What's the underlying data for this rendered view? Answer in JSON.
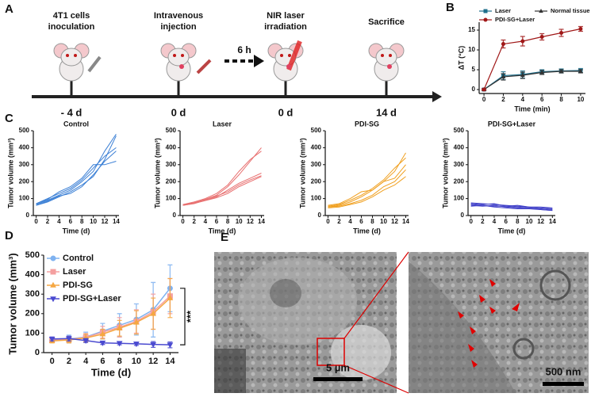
{
  "panels": [
    "A",
    "B",
    "C",
    "D",
    "E"
  ],
  "timeline": {
    "events": [
      {
        "label": [
          "4T1 cells",
          "inoculation"
        ],
        "day": "- 4 d"
      },
      {
        "label": [
          "Intravenous",
          "injection"
        ],
        "day": "0 d"
      },
      {
        "label": [
          "NIR laser",
          "irradiation"
        ],
        "day": "0 d"
      },
      {
        "label": [
          "Sacrifice"
        ],
        "day": "14 d"
      }
    ],
    "interval": "6 h"
  },
  "micrographs": [
    {
      "scale_bar": "5 µm"
    },
    {
      "scale_bar": "500 nm"
    }
  ],
  "chart_data": [
    {
      "type": "line",
      "xlabel": "Time (min)",
      "ylabel": "ΔT (°C)",
      "legend": "top",
      "x": [
        0,
        2,
        4,
        6,
        8,
        10
      ],
      "xlim": [
        -0.5,
        10.5
      ],
      "xticks": [
        0,
        2,
        4,
        6,
        8,
        10
      ],
      "ylim": [
        -1,
        17
      ],
      "yticks": [
        0,
        5,
        10,
        15
      ],
      "series": [
        {
          "name": "Laser",
          "color": "#1f6f8b",
          "marker": "square",
          "values": [
            0,
            3.5,
            3.8,
            4.5,
            4.7,
            4.8
          ],
          "errors": [
            0.2,
            1.0,
            0.9,
            0.5,
            0.5,
            0.5
          ]
        },
        {
          "name": "Normal tissue",
          "color": "#333333",
          "marker": "triangle",
          "values": [
            0,
            3.2,
            3.6,
            4.3,
            4.6,
            4.6
          ],
          "errors": [
            0.2,
            0.8,
            0.8,
            0.5,
            0.4,
            0.4
          ]
        },
        {
          "name": "PDI-SG+Laser",
          "color": "#a01818",
          "marker": "circle",
          "values": [
            0,
            11.5,
            12.2,
            13.3,
            14.3,
            15.3
          ],
          "errors": [
            0.2,
            1.0,
            1.2,
            0.8,
            0.9,
            0.6
          ]
        }
      ]
    },
    {
      "type": "line",
      "title": "Control",
      "xlabel": "Time (d)",
      "ylabel": "Tumor volume (mm³)",
      "x": [
        0,
        2,
        4,
        6,
        8,
        10,
        12,
        14
      ],
      "xlim": [
        -0.5,
        14.5
      ],
      "xticks": [
        0,
        2,
        4,
        6,
        8,
        10,
        12,
        14
      ],
      "ylim": [
        0,
        500
      ],
      "yticks": [
        0,
        100,
        200,
        300,
        400,
        500
      ],
      "series": [
        {
          "color": "#3a7fd5",
          "values": [
            60,
            80,
            110,
            140,
            180,
            230,
            330,
            470
          ]
        },
        {
          "color": "#3a7fd5",
          "values": [
            65,
            90,
            120,
            150,
            200,
            260,
            380,
            480
          ]
        },
        {
          "color": "#3a7fd5",
          "values": [
            70,
            100,
            130,
            160,
            210,
            280,
            350,
            400
          ]
        },
        {
          "color": "#3a7fd5",
          "values": [
            60,
            85,
            115,
            130,
            170,
            240,
            320,
            380
          ]
        },
        {
          "color": "#3a7fd5",
          "values": [
            70,
            95,
            140,
            170,
            220,
            300,
            300,
            320
          ]
        }
      ]
    },
    {
      "type": "line",
      "title": "Laser",
      "xlabel": "Time (d)",
      "ylabel": "Tumor volume (mm³)",
      "x": [
        0,
        2,
        4,
        6,
        8,
        10,
        12,
        14
      ],
      "xlim": [
        -0.5,
        14.5
      ],
      "xticks": [
        0,
        2,
        4,
        6,
        8,
        10,
        12,
        14
      ],
      "ylim": [
        0,
        500
      ],
      "yticks": [
        0,
        100,
        200,
        300,
        400,
        500
      ],
      "series": [
        {
          "color": "#e87070",
          "values": [
            60,
            75,
            95,
            120,
            170,
            240,
            320,
            400
          ]
        },
        {
          "color": "#e87070",
          "values": [
            65,
            80,
            100,
            130,
            180,
            260,
            330,
            380
          ]
        },
        {
          "color": "#e87070",
          "values": [
            60,
            70,
            90,
            110,
            150,
            190,
            220,
            250
          ]
        },
        {
          "color": "#e87070",
          "values": [
            65,
            75,
            95,
            115,
            140,
            180,
            210,
            235
          ]
        },
        {
          "color": "#e87070",
          "values": [
            60,
            72,
            88,
            105,
            130,
            170,
            200,
            230
          ]
        }
      ]
    },
    {
      "type": "line",
      "title": "PDI-SG",
      "xlabel": "Time (d)",
      "ylabel": "Tumor volume (mm³)",
      "x": [
        0,
        2,
        4,
        6,
        8,
        10,
        12,
        14
      ],
      "xlim": [
        -0.5,
        14.5
      ],
      "xticks": [
        0,
        2,
        4,
        6,
        8,
        10,
        12,
        14
      ],
      "ylim": [
        0,
        500
      ],
      "yticks": [
        0,
        100,
        200,
        300,
        400,
        500
      ],
      "series": [
        {
          "color": "#f0a020",
          "values": [
            50,
            60,
            80,
            110,
            150,
            200,
            260,
            370
          ]
        },
        {
          "color": "#f0a020",
          "values": [
            55,
            65,
            90,
            120,
            160,
            210,
            280,
            340
          ]
        },
        {
          "color": "#f0a020",
          "values": [
            60,
            70,
            100,
            140,
            150,
            200,
            220,
            300
          ]
        },
        {
          "color": "#f0a020",
          "values": [
            50,
            55,
            70,
            90,
            120,
            170,
            200,
            270
          ]
        },
        {
          "color": "#f0a020",
          "values": [
            45,
            50,
            65,
            80,
            110,
            150,
            180,
            230
          ]
        }
      ]
    },
    {
      "type": "line",
      "title": "PDI-SG+Laser",
      "xlabel": "Time (d)",
      "ylabel": "Tumor volume (mm³)",
      "x": [
        0,
        2,
        4,
        6,
        8,
        10,
        12,
        14
      ],
      "xlim": [
        -0.5,
        14.5
      ],
      "xticks": [
        0,
        2,
        4,
        6,
        8,
        10,
        12,
        14
      ],
      "ylim": [
        0,
        500
      ],
      "yticks": [
        0,
        100,
        200,
        300,
        400,
        500
      ],
      "series": [
        {
          "color": "#4040c8",
          "values": [
            75,
            70,
            65,
            60,
            55,
            50,
            45,
            40
          ]
        },
        {
          "color": "#4040c8",
          "values": [
            70,
            65,
            70,
            55,
            60,
            50,
            50,
            45
          ]
        },
        {
          "color": "#4040c8",
          "values": [
            60,
            55,
            60,
            50,
            45,
            45,
            40,
            35
          ]
        },
        {
          "color": "#4040c8",
          "values": [
            65,
            60,
            55,
            55,
            50,
            45,
            35,
            30
          ]
        },
        {
          "color": "#4040c8",
          "values": [
            55,
            60,
            50,
            45,
            40,
            40,
            35,
            30
          ]
        }
      ]
    },
    {
      "type": "line",
      "xlabel": "Time (d)",
      "ylabel": "Tumor volume (mm³)",
      "legend": "upper left",
      "annotation": "***",
      "x": [
        0,
        2,
        4,
        6,
        8,
        10,
        12,
        14
      ],
      "xlim": [
        -1,
        15
      ],
      "xticks": [
        0,
        2,
        4,
        6,
        8,
        10,
        12,
        14
      ],
      "ylim": [
        0,
        500
      ],
      "yticks": [
        0,
        100,
        200,
        300,
        400,
        500
      ],
      "series": [
        {
          "name": "Control",
          "color": "#7fb2f0",
          "marker": "circle",
          "values": [
            65,
            70,
            80,
            110,
            140,
            170,
            220,
            330
          ],
          "errors": [
            10,
            20,
            25,
            40,
            60,
            80,
            140,
            120
          ]
        },
        {
          "name": "Laser",
          "color": "#f4a0a0",
          "marker": "square",
          "values": [
            63,
            68,
            78,
            105,
            130,
            160,
            210,
            290
          ],
          "errors": [
            10,
            15,
            20,
            30,
            50,
            60,
            90,
            90
          ]
        },
        {
          "name": "PDI-SG",
          "color": "#f5a742",
          "marker": "triangle",
          "values": [
            60,
            65,
            75,
            95,
            125,
            155,
            200,
            280
          ],
          "errors": [
            10,
            15,
            20,
            25,
            40,
            60,
            80,
            100
          ]
        },
        {
          "name": "PDI-SG+Laser",
          "color": "#4a4ad0",
          "marker": "triangle-down",
          "values": [
            70,
            72,
            62,
            50,
            48,
            45,
            42,
            40
          ],
          "errors": [
            10,
            12,
            10,
            8,
            8,
            8,
            15,
            15
          ]
        }
      ]
    }
  ]
}
